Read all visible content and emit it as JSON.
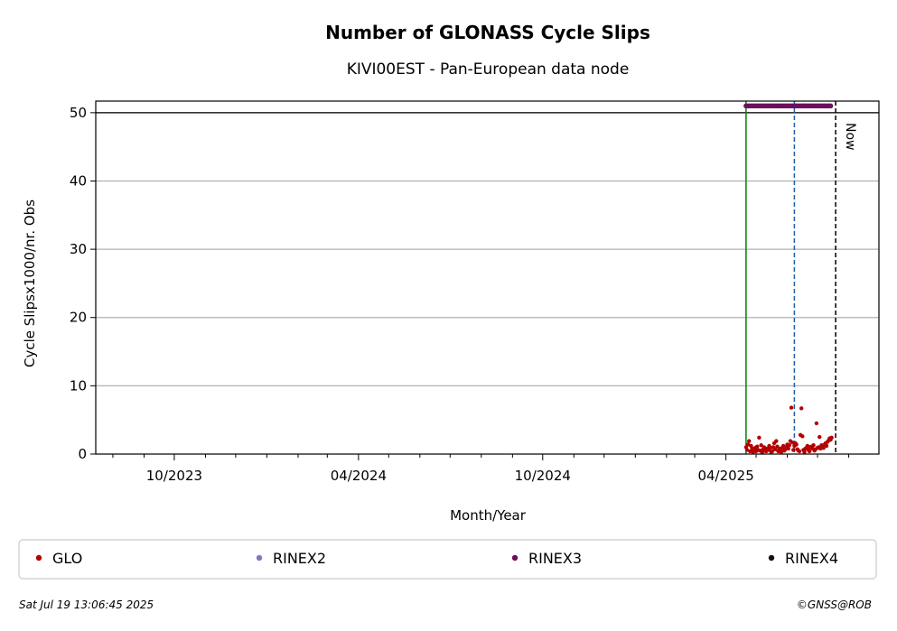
{
  "chart_data": {
    "type": "scatter",
    "title": "Number of GLONASS Cycle Slips",
    "subtitle": "KIVI00EST - Pan-European data node",
    "xlabel": "Month/Year",
    "ylabel": "Cycle Slipsx1000/nr. Obs",
    "x_ticks": [
      "10/2023",
      "04/2024",
      "10/2024",
      "04/2025"
    ],
    "x_tick_dates": [
      "2023-10-01",
      "2024-04-01",
      "2024-10-01",
      "2025-04-01"
    ],
    "xlim": [
      "2023-07-15",
      "2025-08-31"
    ],
    "y_ticks": [
      0,
      10,
      20,
      30,
      40,
      50
    ],
    "ylim": [
      0,
      51.7
    ],
    "grid": "horizontal",
    "legend_position": "bottom",
    "colors": {
      "GLO": "#b30000",
      "RINEX2": "#7b7bc0",
      "RINEX3": "#6b0f5f",
      "RINEX4": "#1a0a1a",
      "start_line": "#008000",
      "event_line": "#1f5fb0",
      "now_line": "#000000",
      "grid": "#b0b0b0"
    },
    "vlines": [
      {
        "label": "",
        "date": "2025-04-21",
        "style": "solid",
        "color_key": "start_line"
      },
      {
        "label": "",
        "date": "2025-06-08",
        "style": "dashed",
        "color_key": "event_line"
      },
      {
        "label": "Now",
        "date": "2025-07-19",
        "style": "dashed",
        "color_key": "now_line"
      }
    ],
    "hline": {
      "y": 50,
      "style": "solid"
    },
    "series": [
      {
        "name": "GLO",
        "x": [
          "2025-04-21",
          "2025-04-22",
          "2025-04-23",
          "2025-04-24",
          "2025-04-25",
          "2025-04-26",
          "2025-04-27",
          "2025-04-28",
          "2025-04-29",
          "2025-04-30",
          "2025-05-01",
          "2025-05-02",
          "2025-05-03",
          "2025-05-04",
          "2025-05-05",
          "2025-05-06",
          "2025-05-07",
          "2025-05-08",
          "2025-05-09",
          "2025-05-10",
          "2025-05-11",
          "2025-05-12",
          "2025-05-13",
          "2025-05-14",
          "2025-05-15",
          "2025-05-16",
          "2025-05-17",
          "2025-05-18",
          "2025-05-19",
          "2025-05-20",
          "2025-05-21",
          "2025-05-22",
          "2025-05-23",
          "2025-05-24",
          "2025-05-25",
          "2025-05-26",
          "2025-05-27",
          "2025-05-28",
          "2025-05-29",
          "2025-05-30",
          "2025-05-31",
          "2025-06-01",
          "2025-06-02",
          "2025-06-03",
          "2025-06-04",
          "2025-06-05",
          "2025-06-06",
          "2025-06-07",
          "2025-06-08",
          "2025-06-09",
          "2025-06-10",
          "2025-06-11",
          "2025-06-12",
          "2025-06-13",
          "2025-06-14",
          "2025-06-15",
          "2025-06-16",
          "2025-06-17",
          "2025-06-18",
          "2025-06-19",
          "2025-06-20",
          "2025-06-21",
          "2025-06-22",
          "2025-06-23",
          "2025-06-24",
          "2025-06-25",
          "2025-06-26",
          "2025-06-27",
          "2025-06-28",
          "2025-06-29",
          "2025-06-30",
          "2025-07-01",
          "2025-07-02",
          "2025-07-03",
          "2025-07-04",
          "2025-07-05",
          "2025-07-06",
          "2025-07-07",
          "2025-07-08",
          "2025-07-09",
          "2025-07-10",
          "2025-07-11",
          "2025-07-12",
          "2025-07-13",
          "2025-07-14",
          "2025-07-15"
        ],
        "y": [
          1.0,
          0.6,
          1.4,
          1.9,
          0.4,
          1.2,
          0.8,
          0.3,
          0.5,
          0.9,
          0.4,
          1.1,
          0.6,
          2.4,
          0.5,
          1.3,
          0.2,
          0.7,
          1.0,
          0.5,
          0.4,
          0.8,
          0.6,
          1.2,
          0.9,
          0.3,
          0.4,
          1.0,
          1.6,
          0.7,
          1.9,
          1.1,
          0.4,
          0.6,
          0.8,
          0.3,
          0.9,
          1.2,
          0.5,
          0.7,
          1.0,
          1.4,
          0.8,
          1.3,
          1.9,
          6.8,
          1.7,
          0.6,
          1.2,
          1.6,
          1.4,
          0.7,
          0.5,
          0.4,
          2.8,
          6.7,
          2.6,
          0.6,
          0.3,
          0.8,
          0.9,
          1.2,
          0.6,
          0.4,
          1.0,
          1.1,
          0.8,
          1.3,
          0.5,
          0.7,
          4.5,
          0.9,
          1.0,
          2.5,
          0.8,
          1.3,
          1.1,
          0.9,
          1.4,
          1.6,
          1.2,
          1.8,
          2.0,
          2.3,
          2.1,
          2.4
        ]
      },
      {
        "name": "RINEX2",
        "x": [],
        "y": []
      },
      {
        "name": "RINEX3",
        "x": [
          "2025-04-21",
          "2025-04-23",
          "2025-04-25",
          "2025-04-27",
          "2025-04-29",
          "2025-05-01",
          "2025-05-03",
          "2025-05-05",
          "2025-05-07",
          "2025-05-09",
          "2025-05-11",
          "2025-05-13",
          "2025-05-15",
          "2025-05-17",
          "2025-05-19",
          "2025-05-21",
          "2025-05-23",
          "2025-05-25",
          "2025-05-27",
          "2025-05-29",
          "2025-05-31",
          "2025-06-02",
          "2025-06-04",
          "2025-06-06",
          "2025-06-08",
          "2025-06-10",
          "2025-06-12",
          "2025-06-14",
          "2025-06-16",
          "2025-06-18",
          "2025-06-20",
          "2025-06-22",
          "2025-06-24",
          "2025-06-26",
          "2025-06-28",
          "2025-06-30",
          "2025-07-02",
          "2025-07-04",
          "2025-07-06",
          "2025-07-08",
          "2025-07-10",
          "2025-07-12",
          "2025-07-14"
        ],
        "y": [
          51,
          51,
          51,
          51,
          51,
          51,
          51,
          51,
          51,
          51,
          51,
          51,
          51,
          51,
          51,
          51,
          51,
          51,
          51,
          51,
          51,
          51,
          51,
          51,
          51,
          51,
          51,
          51,
          51,
          51,
          51,
          51,
          51,
          51,
          51,
          51,
          51,
          51,
          51,
          51,
          51,
          51,
          51
        ]
      },
      {
        "name": "RINEX4",
        "x": [],
        "y": []
      }
    ],
    "legend": [
      "GLO",
      "RINEX2",
      "RINEX3",
      "RINEX4"
    ]
  },
  "footer": {
    "timestamp": "Sat Jul 19 13:06:45 2025",
    "credit": "©GNSS@ROB"
  }
}
